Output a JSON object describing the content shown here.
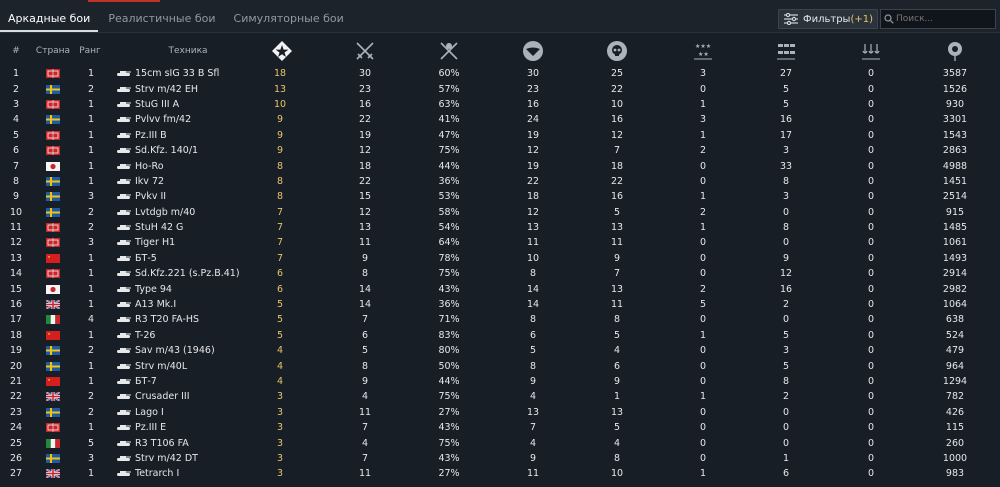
{
  "tabs": [
    {
      "label": "Аркадные бои",
      "active": true
    },
    {
      "label": "Реалистичные бои",
      "active": false
    },
    {
      "label": "Симуляторные бои",
      "active": false
    }
  ],
  "filters": {
    "label": "Фильтры",
    "count": "(+1)"
  },
  "search": {
    "placeholder": "Поиск..."
  },
  "headers": {
    "num": "#",
    "country": "Страна",
    "rank": "Ранг",
    "vehicle": "Техника"
  },
  "header_icons": [
    "rank-star-icon",
    "crossed-swords-icon",
    "crossed-swords-percent-icon",
    "eagle-wing-icon",
    "skull-icon",
    "stars-medal-icon",
    "ship-icon",
    "anchors-icon",
    "balloon-icon"
  ],
  "colors": {
    "highlight": "#e8c46a",
    "accent_red": "#c0312c"
  },
  "rows": [
    {
      "n": "1",
      "flag": "de",
      "rank": "1",
      "name": "15cm sIG 33 B Sfl",
      "v1": "18",
      "v2": "30",
      "v3": "60%",
      "v4": "30",
      "v5": "25",
      "v6": "3",
      "v7": "27",
      "v8": "0",
      "v9": "3587"
    },
    {
      "n": "2",
      "flag": "se",
      "rank": "2",
      "name": "Strv m/42 EH",
      "v1": "13",
      "v2": "23",
      "v3": "57%",
      "v4": "23",
      "v5": "22",
      "v6": "0",
      "v7": "5",
      "v8": "0",
      "v9": "1526"
    },
    {
      "n": "3",
      "flag": "de",
      "rank": "1",
      "name": "StuG III A",
      "v1": "10",
      "v2": "16",
      "v3": "63%",
      "v4": "16",
      "v5": "10",
      "v6": "1",
      "v7": "5",
      "v8": "0",
      "v9": "930"
    },
    {
      "n": "4",
      "flag": "se",
      "rank": "1",
      "name": "Pvlvv fm/42",
      "v1": "9",
      "v2": "22",
      "v3": "41%",
      "v4": "24",
      "v5": "16",
      "v6": "3",
      "v7": "16",
      "v8": "0",
      "v9": "3301"
    },
    {
      "n": "5",
      "flag": "de",
      "rank": "1",
      "name": "Pz.III B",
      "v1": "9",
      "v2": "19",
      "v3": "47%",
      "v4": "19",
      "v5": "12",
      "v6": "1",
      "v7": "17",
      "v8": "0",
      "v9": "1543"
    },
    {
      "n": "6",
      "flag": "de",
      "rank": "1",
      "name": "Sd.Kfz. 140/1",
      "v1": "9",
      "v2": "12",
      "v3": "75%",
      "v4": "12",
      "v5": "7",
      "v6": "2",
      "v7": "3",
      "v8": "0",
      "v9": "2863"
    },
    {
      "n": "7",
      "flag": "jp",
      "rank": "1",
      "name": "Ho-Ro",
      "v1": "8",
      "v2": "18",
      "v3": "44%",
      "v4": "19",
      "v5": "18",
      "v6": "0",
      "v7": "33",
      "v8": "0",
      "v9": "4988"
    },
    {
      "n": "8",
      "flag": "se",
      "rank": "1",
      "name": "Ikv 72",
      "v1": "8",
      "v2": "22",
      "v3": "36%",
      "v4": "22",
      "v5": "22",
      "v6": "0",
      "v7": "8",
      "v8": "0",
      "v9": "1451"
    },
    {
      "n": "9",
      "flag": "se",
      "rank": "3",
      "name": "Pvkv II",
      "v1": "8",
      "v2": "15",
      "v3": "53%",
      "v4": "18",
      "v5": "16",
      "v6": "1",
      "v7": "3",
      "v8": "0",
      "v9": "2514"
    },
    {
      "n": "10",
      "flag": "se",
      "rank": "2",
      "name": "Lvtdgb m/40",
      "v1": "7",
      "v2": "12",
      "v3": "58%",
      "v4": "12",
      "v5": "5",
      "v6": "2",
      "v7": "0",
      "v8": "0",
      "v9": "915"
    },
    {
      "n": "11",
      "flag": "de",
      "rank": "2",
      "name": "StuH 42 G",
      "v1": "7",
      "v2": "13",
      "v3": "54%",
      "v4": "13",
      "v5": "13",
      "v6": "1",
      "v7": "8",
      "v8": "0",
      "v9": "1485"
    },
    {
      "n": "12",
      "flag": "de",
      "rank": "3",
      "name": "Tiger H1",
      "v1": "7",
      "v2": "11",
      "v3": "64%",
      "v4": "11",
      "v5": "11",
      "v6": "0",
      "v7": "0",
      "v8": "0",
      "v9": "1061"
    },
    {
      "n": "13",
      "flag": "cn",
      "rank": "1",
      "name": "БТ-5",
      "v1": "7",
      "v2": "9",
      "v3": "78%",
      "v4": "10",
      "v5": "9",
      "v6": "0",
      "v7": "9",
      "v8": "0",
      "v9": "1493"
    },
    {
      "n": "14",
      "flag": "de",
      "rank": "1",
      "name": "Sd.Kfz.221 (s.Pz.B.41)",
      "v1": "6",
      "v2": "8",
      "v3": "75%",
      "v4": "8",
      "v5": "7",
      "v6": "0",
      "v7": "12",
      "v8": "0",
      "v9": "2914"
    },
    {
      "n": "15",
      "flag": "jp",
      "rank": "1",
      "name": "Type 94",
      "v1": "6",
      "v2": "14",
      "v3": "43%",
      "v4": "14",
      "v5": "13",
      "v6": "2",
      "v7": "16",
      "v8": "0",
      "v9": "2982"
    },
    {
      "n": "16",
      "flag": "gb",
      "rank": "1",
      "name": "A13 Mk.I",
      "v1": "5",
      "v2": "14",
      "v3": "36%",
      "v4": "14",
      "v5": "11",
      "v6": "5",
      "v7": "2",
      "v8": "0",
      "v9": "1064"
    },
    {
      "n": "17",
      "flag": "it",
      "rank": "4",
      "name": "R3 T20 FA-HS",
      "v1": "5",
      "v2": "7",
      "v3": "71%",
      "v4": "8",
      "v5": "8",
      "v6": "0",
      "v7": "0",
      "v8": "0",
      "v9": "638"
    },
    {
      "n": "18",
      "flag": "cn",
      "rank": "1",
      "name": "T-26",
      "v1": "5",
      "v2": "6",
      "v3": "83%",
      "v4": "6",
      "v5": "5",
      "v6": "1",
      "v7": "5",
      "v8": "0",
      "v9": "524"
    },
    {
      "n": "19",
      "flag": "se",
      "rank": "2",
      "name": "Sav m/43 (1946)",
      "v1": "4",
      "v2": "5",
      "v3": "80%",
      "v4": "5",
      "v5": "4",
      "v6": "0",
      "v7": "3",
      "v8": "0",
      "v9": "479"
    },
    {
      "n": "20",
      "flag": "se",
      "rank": "1",
      "name": "Strv m/40L",
      "v1": "4",
      "v2": "8",
      "v3": "50%",
      "v4": "8",
      "v5": "6",
      "v6": "0",
      "v7": "5",
      "v8": "0",
      "v9": "964"
    },
    {
      "n": "21",
      "flag": "cn",
      "rank": "1",
      "name": "БТ-7",
      "v1": "4",
      "v2": "9",
      "v3": "44%",
      "v4": "9",
      "v5": "9",
      "v6": "0",
      "v7": "8",
      "v8": "0",
      "v9": "1294"
    },
    {
      "n": "22",
      "flag": "gb",
      "rank": "2",
      "name": "Crusader III",
      "v1": "3",
      "v2": "4",
      "v3": "75%",
      "v4": "4",
      "v5": "1",
      "v6": "1",
      "v7": "2",
      "v8": "0",
      "v9": "782"
    },
    {
      "n": "23",
      "flag": "se",
      "rank": "2",
      "name": "Lago I",
      "v1": "3",
      "v2": "11",
      "v3": "27%",
      "v4": "13",
      "v5": "13",
      "v6": "0",
      "v7": "0",
      "v8": "0",
      "v9": "426"
    },
    {
      "n": "24",
      "flag": "de",
      "rank": "1",
      "name": "Pz.III E",
      "v1": "3",
      "v2": "7",
      "v3": "43%",
      "v4": "7",
      "v5": "5",
      "v6": "0",
      "v7": "0",
      "v8": "0",
      "v9": "115"
    },
    {
      "n": "25",
      "flag": "it",
      "rank": "5",
      "name": "R3 T106 FA",
      "v1": "3",
      "v2": "4",
      "v3": "75%",
      "v4": "4",
      "v5": "4",
      "v6": "0",
      "v7": "0",
      "v8": "0",
      "v9": "260"
    },
    {
      "n": "26",
      "flag": "se",
      "rank": "3",
      "name": "Strv m/42 DT",
      "v1": "3",
      "v2": "7",
      "v3": "43%",
      "v4": "9",
      "v5": "8",
      "v6": "0",
      "v7": "1",
      "v8": "0",
      "v9": "1000"
    },
    {
      "n": "27",
      "flag": "gb",
      "rank": "1",
      "name": "Tetrarch I",
      "v1": "3",
      "v2": "11",
      "v3": "27%",
      "v4": "11",
      "v5": "10",
      "v6": "1",
      "v7": "6",
      "v8": "0",
      "v9": "983"
    }
  ]
}
